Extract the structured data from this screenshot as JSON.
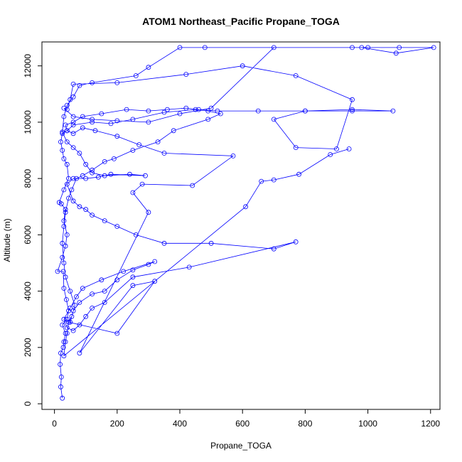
{
  "chart_data": {
    "type": "line",
    "title": "ATOM1 Northeast_Pacific Propane_TOGA",
    "xlabel": "Propane_TOGA",
    "ylabel": "Altitude (m)",
    "xlim": [
      -40,
      1230
    ],
    "ylim": [
      -200,
      12850
    ],
    "xticks": [
      0,
      200,
      400,
      600,
      800,
      1000,
      1200
    ],
    "yticks": [
      0,
      2000,
      4000,
      6000,
      8000,
      10000,
      12000
    ],
    "series": [
      {
        "color": "#0000ff",
        "marker": "open-circle",
        "points": [
          [
            25,
            200
          ],
          [
            20,
            600
          ],
          [
            22,
            950
          ],
          [
            18,
            1400
          ],
          [
            20,
            1800
          ],
          [
            28,
            2000
          ],
          [
            30,
            2200
          ],
          [
            35,
            2500
          ],
          [
            25,
            2800
          ],
          [
            40,
            3000
          ],
          [
            45,
            3300
          ],
          [
            38,
            3700
          ],
          [
            30,
            4100
          ],
          [
            28,
            4700
          ],
          [
            10,
            4700
          ],
          [
            25,
            5200
          ],
          [
            35,
            5600
          ],
          [
            40,
            6000
          ],
          [
            30,
            6500
          ],
          [
            35,
            6900
          ],
          [
            22,
            7100
          ],
          [
            15,
            7150
          ],
          [
            30,
            7600
          ],
          [
            45,
            8000
          ],
          [
            40,
            8500
          ],
          [
            30,
            8700
          ],
          [
            25,
            9000
          ],
          [
            20,
            9300
          ],
          [
            25,
            9600
          ],
          [
            40,
            9700
          ],
          [
            60,
            9900
          ],
          [
            120,
            10000
          ],
          [
            180,
            9950
          ],
          [
            250,
            10100
          ],
          [
            350,
            10350
          ],
          [
            450,
            10450
          ],
          [
            520,
            10400
          ],
          [
            650,
            10400
          ],
          [
            800,
            10400
          ],
          [
            950,
            10400
          ],
          [
            1080,
            10400
          ],
          [
            950,
            10450
          ],
          [
            800,
            10400
          ],
          [
            700,
            10100
          ],
          [
            770,
            9100
          ],
          [
            900,
            9050
          ],
          [
            950,
            10800
          ],
          [
            770,
            11650
          ],
          [
            600,
            12000
          ],
          [
            420,
            11700
          ],
          [
            200,
            11400
          ],
          [
            60,
            11350
          ],
          [
            50,
            10800
          ],
          [
            40,
            10450
          ],
          [
            30,
            10500
          ],
          [
            60,
            10200
          ],
          [
            120,
            10100
          ],
          [
            200,
            10050
          ],
          [
            300,
            10000
          ],
          [
            400,
            10300
          ],
          [
            500,
            10500
          ],
          [
            700,
            12650
          ],
          [
            950,
            12650
          ],
          [
            1000,
            12650
          ],
          [
            1100,
            12650
          ],
          [
            1210,
            12650
          ],
          [
            1090,
            12450
          ],
          [
            980,
            12650
          ],
          [
            480,
            12650
          ],
          [
            400,
            12650
          ],
          [
            300,
            11950
          ],
          [
            260,
            11650
          ],
          [
            120,
            11400
          ],
          [
            80,
            11300
          ],
          [
            60,
            10900
          ],
          [
            40,
            10600
          ],
          [
            30,
            10200
          ],
          [
            25,
            9650
          ],
          [
            40,
            9300
          ],
          [
            60,
            9100
          ],
          [
            80,
            8900
          ],
          [
            100,
            8500
          ],
          [
            120,
            8200
          ],
          [
            160,
            8100
          ],
          [
            240,
            8150
          ],
          [
            290,
            8100
          ],
          [
            180,
            8150
          ],
          [
            140,
            8050
          ],
          [
            100,
            8000
          ],
          [
            60,
            8000
          ],
          [
            40,
            7800
          ],
          [
            60,
            7200
          ],
          [
            80,
            7000
          ],
          [
            100,
            6900
          ],
          [
            120,
            6700
          ],
          [
            160,
            6500
          ],
          [
            200,
            6300
          ],
          [
            260,
            6000
          ],
          [
            350,
            5700
          ],
          [
            500,
            5700
          ],
          [
            700,
            5500
          ],
          [
            770,
            5750
          ],
          [
            430,
            4850
          ],
          [
            250,
            4500
          ],
          [
            160,
            3600
          ],
          [
            120,
            3400
          ],
          [
            100,
            3100
          ],
          [
            80,
            2800
          ],
          [
            60,
            2600
          ],
          [
            40,
            2700
          ],
          [
            30,
            3000
          ],
          [
            50,
            3400
          ],
          [
            70,
            3800
          ],
          [
            90,
            4100
          ],
          [
            150,
            4400
          ],
          [
            220,
            4700
          ],
          [
            320,
            5050
          ],
          [
            300,
            4950
          ],
          [
            250,
            4750
          ],
          [
            200,
            4400
          ],
          [
            160,
            4000
          ],
          [
            120,
            3900
          ],
          [
            80,
            3600
          ],
          [
            60,
            3300
          ],
          [
            50,
            2900
          ],
          [
            45,
            2900
          ],
          [
            200,
            2500
          ],
          [
            320,
            4350
          ],
          [
            250,
            4200
          ],
          [
            80,
            1800
          ],
          [
            300,
            6800
          ],
          [
            250,
            7500
          ],
          [
            280,
            7800
          ],
          [
            440,
            7750
          ],
          [
            570,
            8800
          ],
          [
            350,
            8900
          ],
          [
            270,
            9200
          ],
          [
            200,
            9500
          ],
          [
            130,
            9700
          ],
          [
            90,
            9800
          ],
          [
            60,
            9600
          ],
          [
            40,
            9700
          ],
          [
            35,
            9900
          ],
          [
            60,
            10000
          ],
          [
            90,
            10200
          ],
          [
            150,
            10300
          ],
          [
            230,
            10450
          ],
          [
            300,
            10400
          ],
          [
            360,
            10450
          ],
          [
            420,
            10500
          ],
          [
            460,
            10450
          ],
          [
            490,
            10400
          ],
          [
            530,
            10300
          ],
          [
            490,
            10100
          ],
          [
            380,
            9700
          ],
          [
            330,
            9300
          ],
          [
            250,
            9000
          ],
          [
            190,
            8700
          ],
          [
            160,
            8600
          ],
          [
            120,
            8300
          ],
          [
            90,
            8100
          ],
          [
            70,
            8000
          ],
          [
            55,
            7600
          ],
          [
            45,
            7300
          ],
          [
            35,
            6800
          ],
          [
            30,
            6300
          ],
          [
            25,
            5700
          ],
          [
            30,
            5000
          ],
          [
            35,
            4500
          ],
          [
            50,
            4000
          ],
          [
            65,
            3500
          ],
          [
            55,
            3100
          ],
          [
            45,
            2900
          ],
          [
            40,
            2500
          ],
          [
            35,
            2200
          ],
          [
            30,
            1700
          ],
          [
            610,
            7000
          ],
          [
            660,
            7900
          ],
          [
            700,
            7950
          ],
          [
            780,
            8150
          ],
          [
            880,
            8850
          ],
          [
            940,
            9050
          ]
        ]
      }
    ]
  }
}
